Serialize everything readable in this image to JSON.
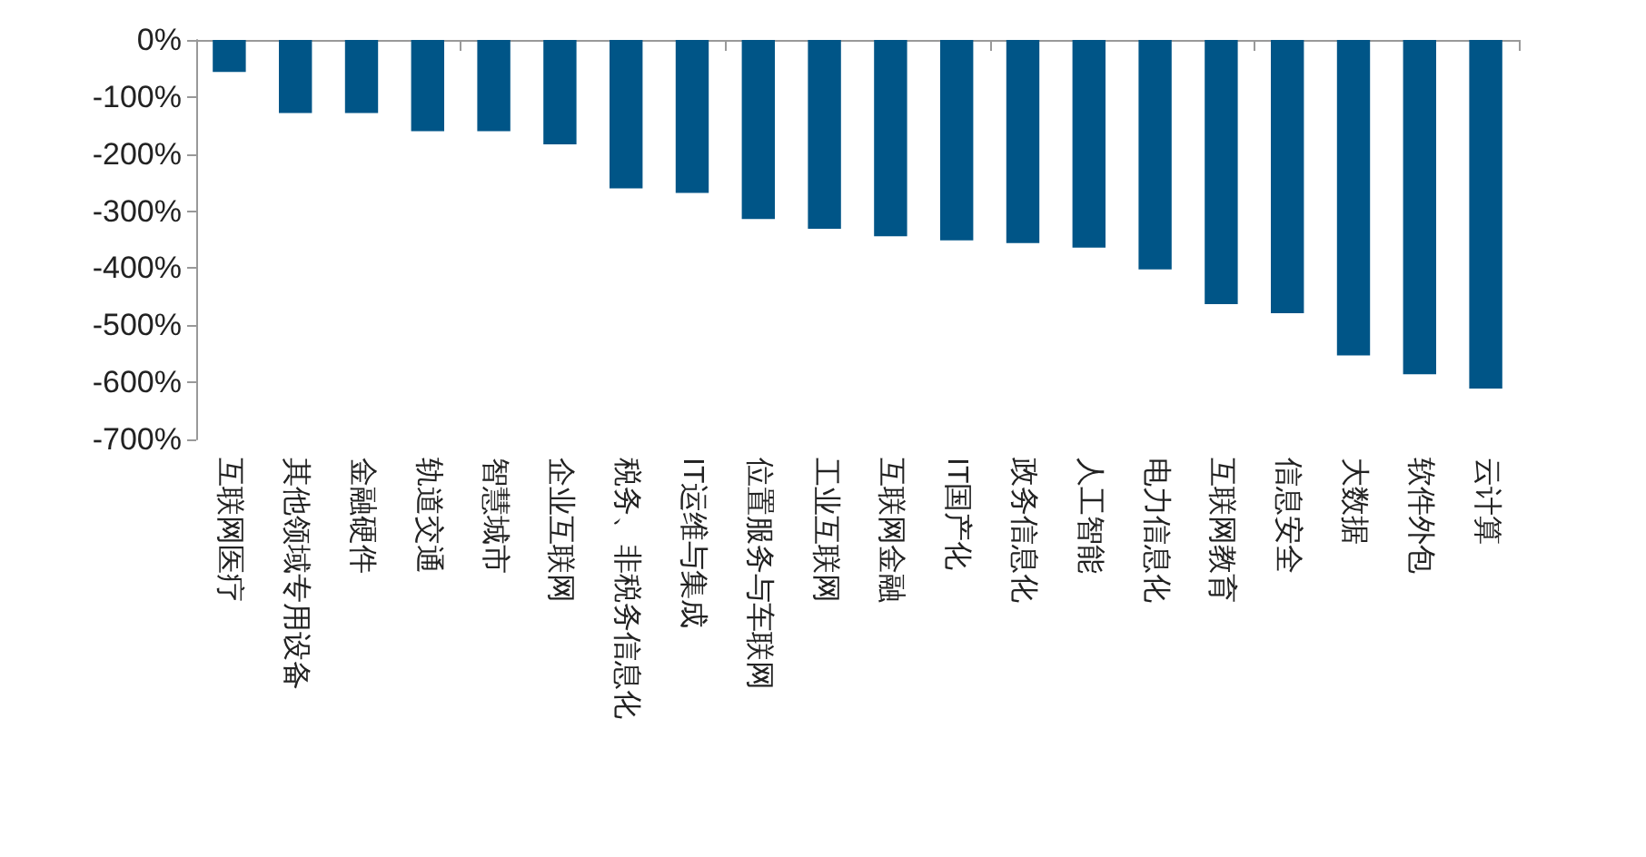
{
  "chart_data": {
    "type": "bar",
    "categories": [
      "互联网医疗",
      "其他领域专用设备",
      "金融硬件",
      "轨道交通",
      "智慧城市",
      "企业互联网",
      "税务、非税务信息化",
      "IT运维与集成",
      "位置服务与车联网",
      "工业互联网",
      "互联网金融",
      "IT国产化",
      "政务信息化",
      "人工智能",
      "电力信息化",
      "互联网教育",
      "信息安全",
      "大数据",
      "软件外包",
      "云计算"
    ],
    "values": [
      -56,
      -128,
      -128,
      -160,
      -160,
      -183,
      -260,
      -268,
      -314,
      -331,
      -344,
      -351,
      -356,
      -364,
      -402,
      -463,
      -479,
      -553,
      -586,
      -611
    ],
    "color": "#005587",
    "ylim": [
      -700,
      0
    ],
    "yticks": [
      {
        "value": 0,
        "label": "0%"
      },
      {
        "value": -100,
        "label": "-100%"
      },
      {
        "value": -200,
        "label": "-200%"
      },
      {
        "value": -300,
        "label": "-300%"
      },
      {
        "value": -400,
        "label": "-400%"
      },
      {
        "value": -500,
        "label": "-500%"
      },
      {
        "value": -600,
        "label": "-600%"
      },
      {
        "value": -700,
        "label": "-700%"
      }
    ]
  }
}
